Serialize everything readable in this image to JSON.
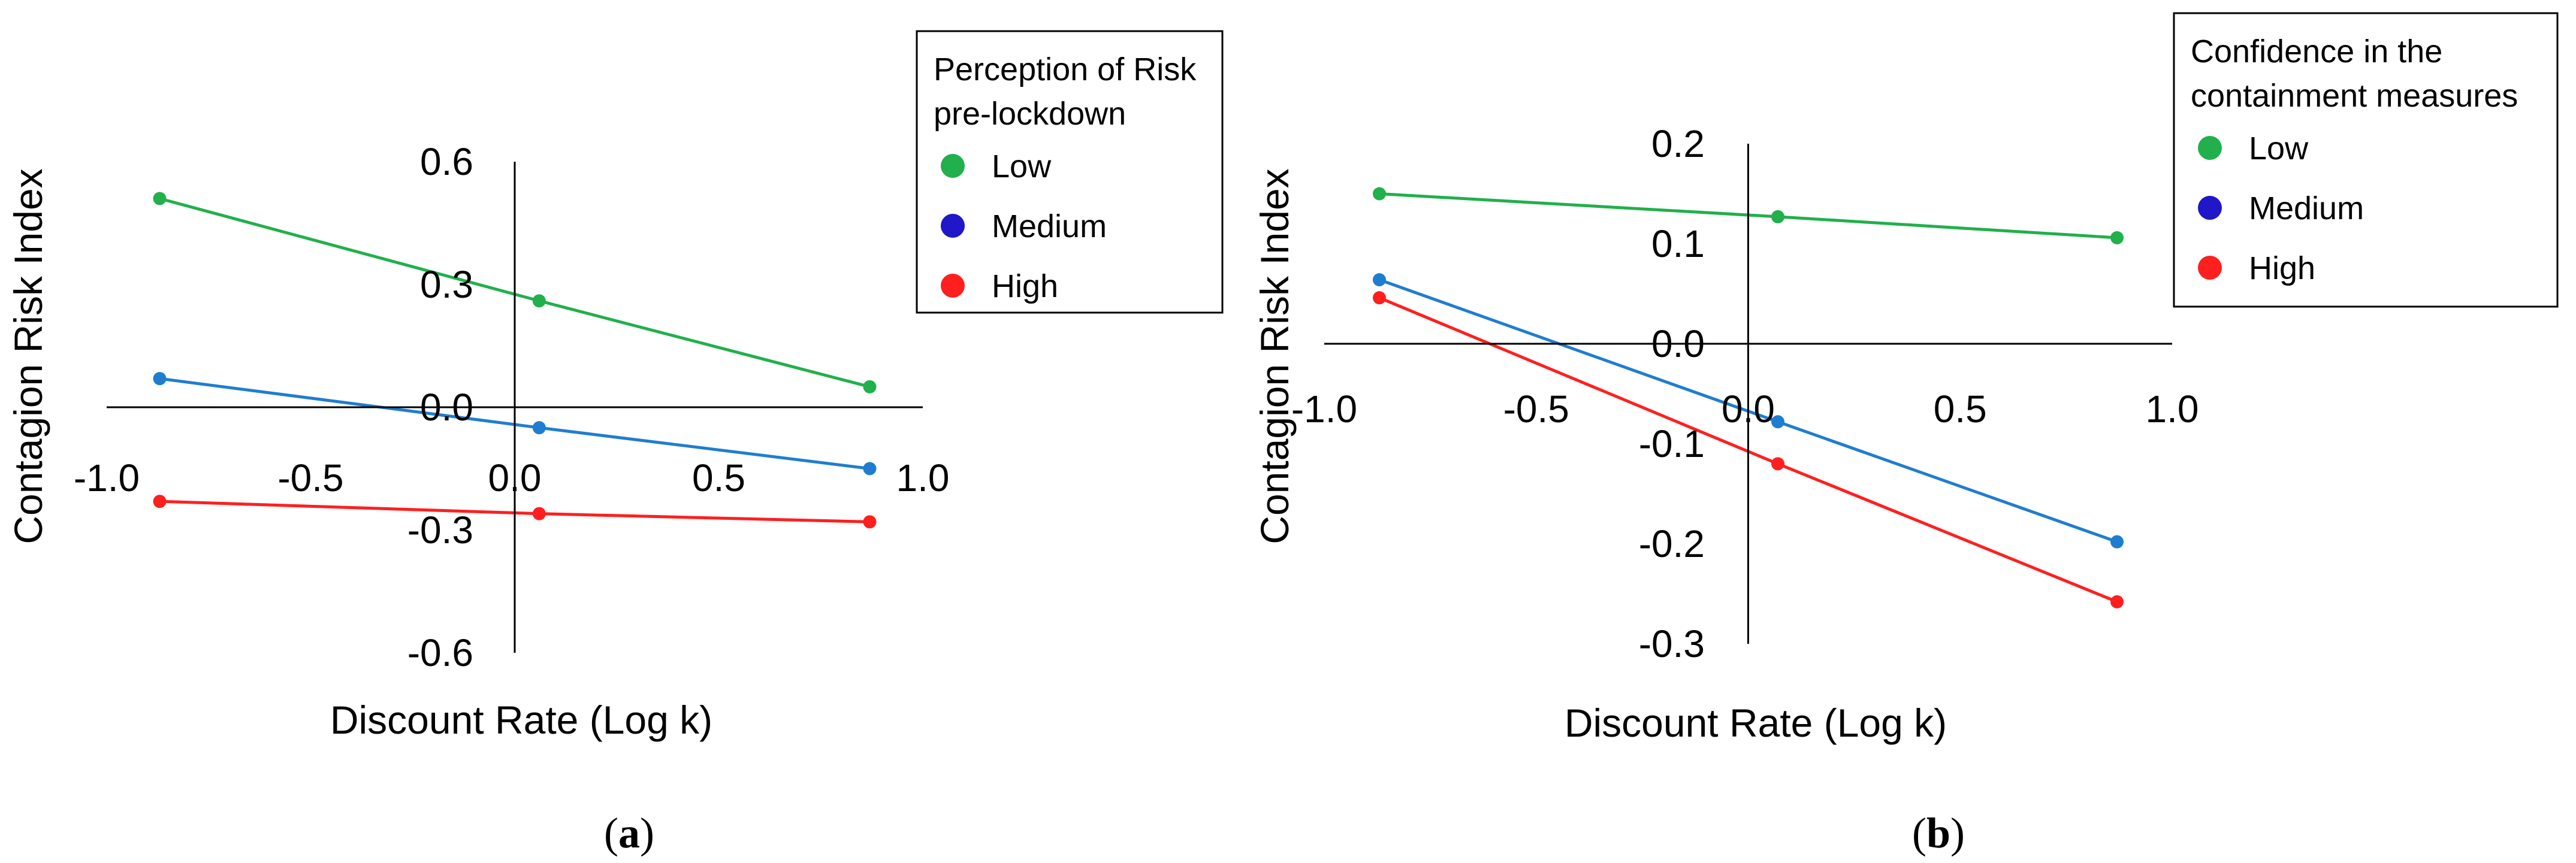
{
  "chart_data": [
    {
      "type": "line",
      "panel_label": {
        "open": "(",
        "letter": "a",
        "close": ")"
      },
      "xlabel": "Discount Rate (Log k)",
      "ylabel": "Contagion Risk Index",
      "xlim": [
        -1.0,
        1.0
      ],
      "ylim": [
        -0.6,
        0.6
      ],
      "xticks": [
        "-1.0",
        "-0.5",
        "0.0",
        "0.5",
        "1.0"
      ],
      "yticks": [
        "0.6",
        "0.3",
        "0.0",
        "-0.3",
        "-0.6"
      ],
      "legend": {
        "title": [
          "Perception of Risk",
          "pre-lockdown"
        ],
        "placement": "top-right",
        "entries": [
          {
            "label": "Low",
            "color": "#21b04b"
          },
          {
            "label": "Medium",
            "color": "#1f17c8"
          },
          {
            "label": "High",
            "color": "#ff1f1f"
          }
        ]
      },
      "x": [
        -0.87,
        0.06,
        0.87
      ],
      "series": [
        {
          "name": "Low",
          "color": "#21b04b",
          "values": [
            0.51,
            0.26,
            0.05
          ]
        },
        {
          "name": "Medium",
          "color": "#1f7dd0",
          "values": [
            0.07,
            -0.05,
            -0.15
          ]
        },
        {
          "name": "High",
          "color": "#ff1f1f",
          "values": [
            -0.23,
            -0.26,
            -0.28
          ]
        }
      ]
    },
    {
      "type": "line",
      "panel_label": {
        "open": "(",
        "letter": "b",
        "close": ")"
      },
      "xlabel": "Discount Rate (Log k)",
      "ylabel": "Contagion Risk Index",
      "xlim": [
        -1.0,
        1.0
      ],
      "ylim": [
        -0.3,
        0.2
      ],
      "xticks": [
        "-1.0",
        "-0.5",
        "0.0",
        "0.5",
        "1.0"
      ],
      "yticks": [
        "0.2",
        "0.1",
        "0.0",
        "-0.1",
        "-0.2",
        "-0.3"
      ],
      "legend": {
        "title": [
          "Confidence in the",
          "containment measures"
        ],
        "placement": "top-right",
        "entries": [
          {
            "label": "Low",
            "color": "#21b04b"
          },
          {
            "label": "Medium",
            "color": "#1f17c8"
          },
          {
            "label": "High",
            "color": "#ff1f1f"
          }
        ]
      },
      "x": [
        -0.87,
        0.07,
        0.87
      ],
      "series": [
        {
          "name": "Low",
          "color": "#21b04b",
          "values": [
            0.15,
            0.127,
            0.106
          ]
        },
        {
          "name": "Medium",
          "color": "#1f7dd0",
          "values": [
            0.064,
            -0.078,
            -0.198
          ]
        },
        {
          "name": "High",
          "color": "#ff1f1f",
          "values": [
            0.046,
            -0.12,
            -0.258
          ]
        }
      ]
    }
  ]
}
